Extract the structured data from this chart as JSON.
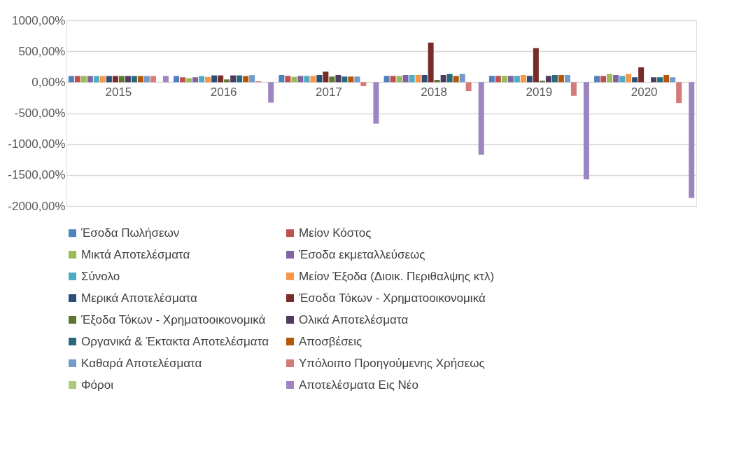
{
  "chart_data": {
    "type": "bar",
    "categories": [
      "2015",
      "2016",
      "2017",
      "2018",
      "2019",
      "2020"
    ],
    "series": [
      {
        "name": "Έσοδα Πωλήσεων",
        "color": "#4f81bd",
        "values": [
          100,
          100,
          117,
          102,
          102,
          102
        ]
      },
      {
        "name": "Μείον Κόστος",
        "color": "#c0504d",
        "values": [
          100,
          80,
          102,
          102,
          102,
          102
        ]
      },
      {
        "name": "Μικτά Αποτελέσματα",
        "color": "#9bbb59",
        "values": [
          100,
          65,
          87,
          102,
          102,
          133
        ]
      },
      {
        "name": "Έσοδα εκμεταλλεύσεως",
        "color": "#8064a2",
        "values": [
          100,
          80,
          102,
          117,
          102,
          117
        ]
      },
      {
        "name": "Σύνολο",
        "color": "#4bacc6",
        "values": [
          100,
          100,
          102,
          117,
          102,
          102
        ]
      },
      {
        "name": "Μείον Έξοδα (Διοικ. Περιθαλψης κτλ)",
        "color": "#f79646",
        "values": [
          100,
          85,
          102,
          117,
          117,
          133
        ]
      },
      {
        "name": "Μερικά Αποτελέσματα",
        "color": "#2c4d75",
        "values": [
          100,
          110,
          117,
          117,
          102,
          80
        ]
      },
      {
        "name": "Έσοδα Τόκων - Χρηματοοικονομικά",
        "color": "#772c2a",
        "values": [
          100,
          110,
          170,
          640,
          550,
          240
        ]
      },
      {
        "name": "Έξοδα Τόκων - Χρηματοοικονομικά",
        "color": "#5f7530",
        "values": [
          100,
          45,
          91,
          38,
          23,
          null
        ]
      },
      {
        "name": "Ολικά Αποτελέσματα",
        "color": "#4d3b62",
        "values": [
          100,
          110,
          117,
          117,
          102,
          80
        ]
      },
      {
        "name": "Οργανικά & Έκτακτα Αποτελέσματα",
        "color": "#276a7c",
        "values": [
          100,
          110,
          91,
          133,
          117,
          80
        ]
      },
      {
        "name": "Αποσβέσεις",
        "color": "#b65708",
        "values": [
          100,
          100,
          91,
          102,
          117,
          117
        ]
      },
      {
        "name": "Καθαρά Αποτελέσματα",
        "color": "#729aca",
        "values": [
          100,
          115,
          91,
          133,
          117,
          80
        ]
      },
      {
        "name": "Υπόλοιπο Προηγούμενης Χρήσεως",
        "color": "#d47b78",
        "values": [
          100,
          15,
          -64,
          -144,
          -220,
          -337
        ]
      },
      {
        "name": "Φόροι",
        "color": "#afc97a",
        "values": [
          null,
          null,
          null,
          null,
          null,
          null
        ]
      },
      {
        "name": "Αποτελέσματα Εις Νέο",
        "color": "#9c85c0",
        "values": [
          100,
          -330,
          -670,
          -1170,
          -1570,
          -1870
        ]
      }
    ],
    "ylim": [
      -2000,
      1000
    ],
    "yticks": [
      {
        "value": 1000,
        "label": "1000,00%"
      },
      {
        "value": 500,
        "label": "500,00%"
      },
      {
        "value": 0,
        "label": "0,00%"
      },
      {
        "value": -500,
        "label": "-500,00%"
      },
      {
        "value": -1000,
        "label": "-1000,00%"
      },
      {
        "value": -1500,
        "label": "-1500,00%"
      },
      {
        "value": -2000,
        "label": "-2000,00%"
      }
    ],
    "grid": "y",
    "legend": "bottom"
  }
}
